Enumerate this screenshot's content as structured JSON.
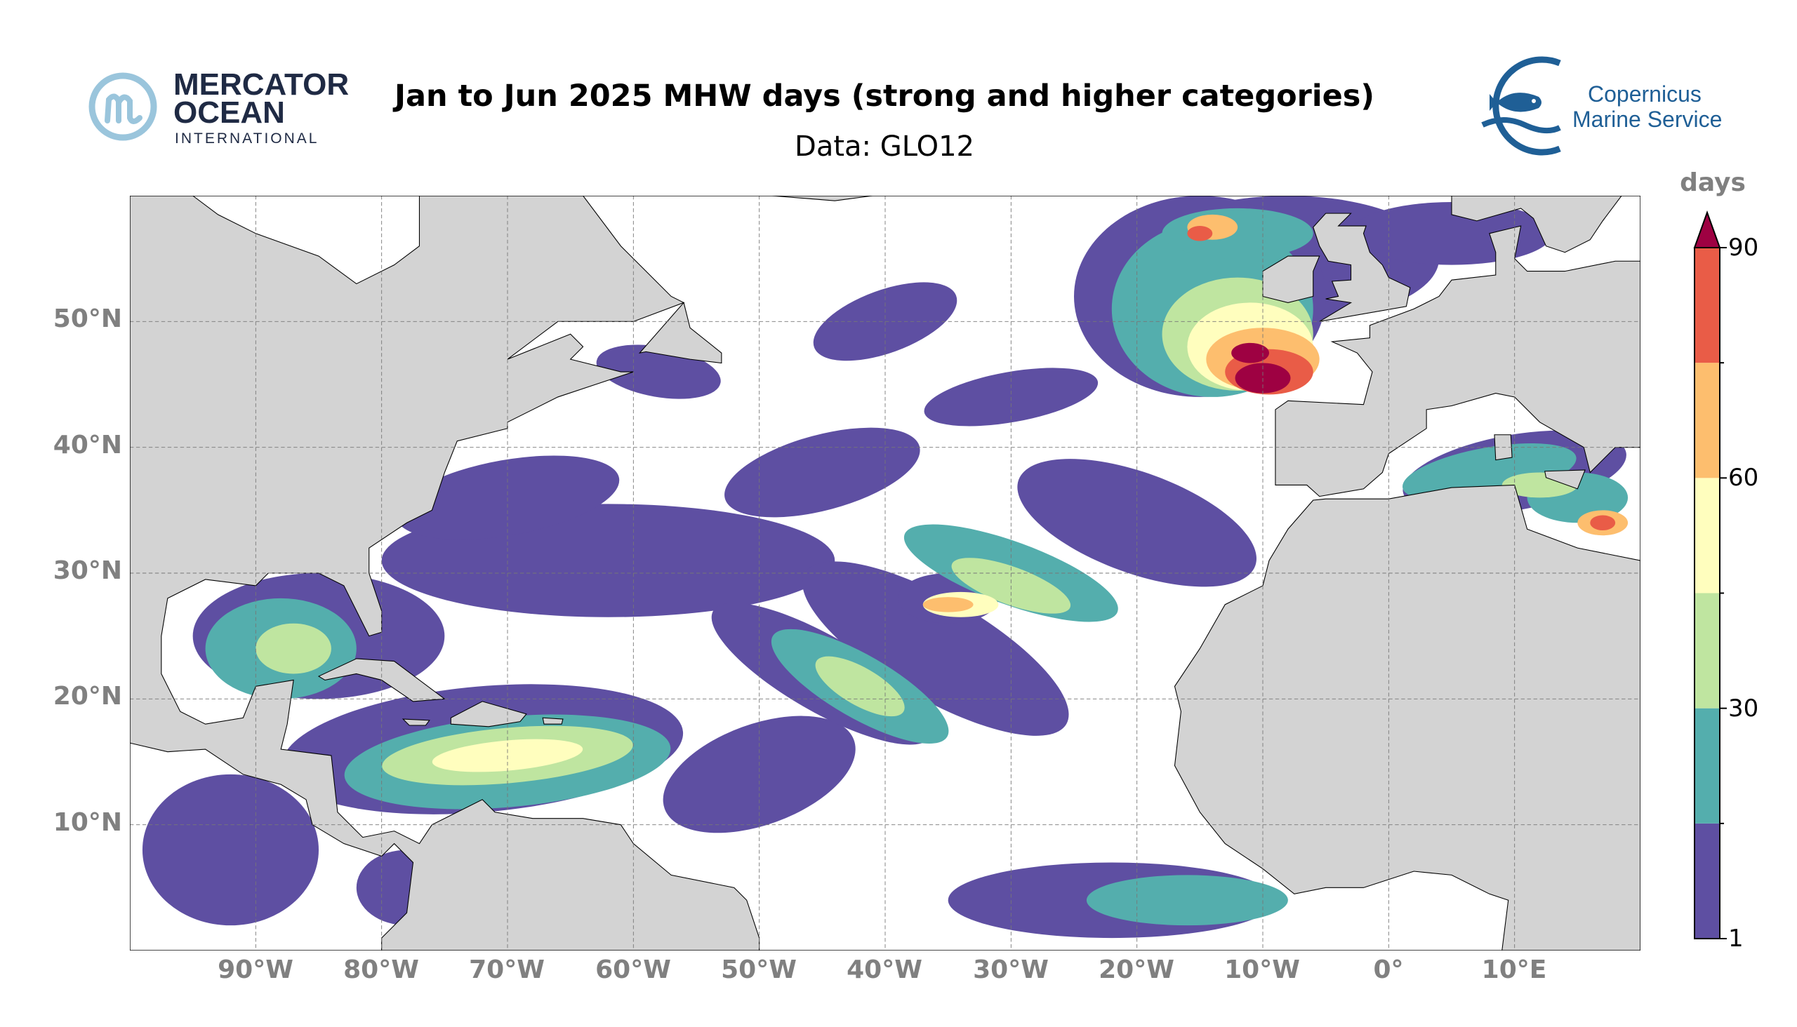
{
  "header": {
    "title": "Jan to Jun 2025 MHW days (strong and higher categories)",
    "subtitle": "Data: GLO12"
  },
  "logos": {
    "left": {
      "line1": "MERCATOR",
      "line2": "OCEAN",
      "line3": "INTERNATIONAL",
      "color": "#1f2a44",
      "mark_color": "#9ac5dc"
    },
    "right": {
      "line1": "Copernicus",
      "line2": "Marine Service",
      "color": "#1f5f96"
    }
  },
  "map": {
    "projection": "PlateCarree",
    "lon_range": [
      -100,
      20
    ],
    "lat_range": [
      0,
      60
    ],
    "land_color": "#d3d3d3",
    "ocean_color": "#ffffff",
    "gridlines": true,
    "lat_labels": [
      "50°N",
      "40°N",
      "30°N",
      "20°N",
      "10°N"
    ],
    "lon_labels": [
      "90°W",
      "80°W",
      "70°W",
      "60°W",
      "50°W",
      "40°W",
      "30°W",
      "20°W",
      "10°W",
      "0°",
      "10°E"
    ]
  },
  "colorbar": {
    "label": "days",
    "boundaries": [
      1,
      15,
      30,
      45,
      60,
      75,
      90
    ],
    "tick_labels": [
      "1",
      "30",
      "60",
      "90"
    ],
    "colors": [
      "#5e4fa2",
      "#54aead",
      "#bfe5a0",
      "#fffebe",
      "#fdbe6e",
      "#e95c47"
    ],
    "extend_color": "#9e0142",
    "extend": "max"
  }
}
